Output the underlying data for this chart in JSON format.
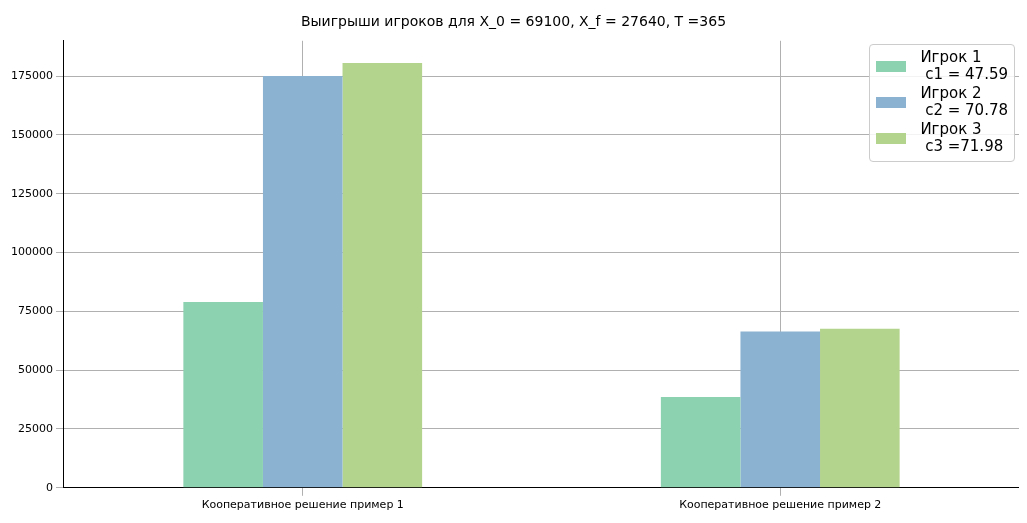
{
  "chart_data": {
    "type": "bar",
    "title": "Выигрыши игроков для X_0 = 69100, X_f = 27640, T =365",
    "categories": [
      "Кооперативное решение пример 1",
      "Кооперативное решение пример 2"
    ],
    "series": [
      {
        "name": "Игрок 1\n c1 = 47.59",
        "color": "#8cd2b0",
        "values": [
          79000,
          38600
        ]
      },
      {
        "name": "Игрок 2\n c2 = 70.78",
        "color": "#8cb2d2",
        "values": [
          175000,
          66400
        ]
      },
      {
        "name": "Игрок 3\n c3 =71.98",
        "color": "#b3d48c",
        "values": [
          180600,
          67600
        ]
      }
    ],
    "ylim": [
      0,
      190000
    ],
    "yticks": [
      0,
      25000,
      50000,
      75000,
      100000,
      125000,
      150000,
      175000
    ],
    "grid": true,
    "legend": "top right"
  }
}
